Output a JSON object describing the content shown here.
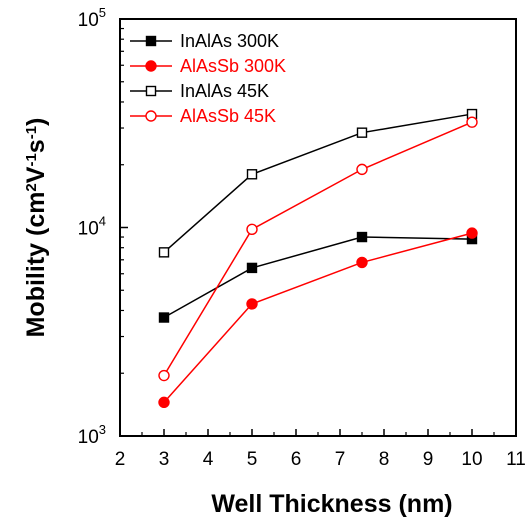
{
  "chart_data": {
    "type": "line",
    "xlabel": "Well Thickness (nm)",
    "ylabel": {
      "parts": [
        {
          "text": "Mobility (cm",
          "sup": false
        },
        {
          "text": "2",
          "sup": true
        },
        {
          "text": "V",
          "sup": false
        },
        {
          "text": "-1",
          "sup": true
        },
        {
          "text": "s",
          "sup": false
        },
        {
          "text": "-1",
          "sup": true
        },
        {
          "text": ")",
          "sup": false
        }
      ]
    },
    "xlim": [
      2,
      11
    ],
    "ylim": [
      1000,
      100000
    ],
    "yscale": "log",
    "x_ticks": [
      "2",
      "3",
      "4",
      "5",
      "6",
      "7",
      "8",
      "9",
      "10",
      "11"
    ],
    "y_ticks": [
      {
        "value": 1000,
        "base": "10",
        "exp": "3"
      },
      {
        "value": 10000,
        "base": "10",
        "exp": "4"
      },
      {
        "value": 100000,
        "base": "10",
        "exp": "5"
      }
    ],
    "grid": false,
    "legend_position": "top-left",
    "series": [
      {
        "name": "InAlAs 300K",
        "color": "#000000",
        "marker": "square",
        "filled": true,
        "x": [
          3,
          5,
          7.5,
          10
        ],
        "y": [
          3700,
          6400,
          9000,
          8800
        ]
      },
      {
        "name": "AlAsSb 300K",
        "color": "#ff0000",
        "marker": "circle",
        "filled": true,
        "x": [
          3,
          5,
          7.5,
          10
        ],
        "y": [
          1450,
          4300,
          6800,
          9400
        ]
      },
      {
        "name": "InAlAs 45K",
        "color": "#000000",
        "marker": "square",
        "filled": false,
        "x": [
          3,
          5,
          7.5,
          10
        ],
        "y": [
          7600,
          18000,
          28500,
          35000
        ]
      },
      {
        "name": "AlAsSb 45K",
        "color": "#ff0000",
        "marker": "circle",
        "filled": false,
        "x": [
          3,
          5,
          7.5,
          10
        ],
        "y": [
          1950,
          9800,
          19000,
          32000
        ]
      }
    ]
  }
}
